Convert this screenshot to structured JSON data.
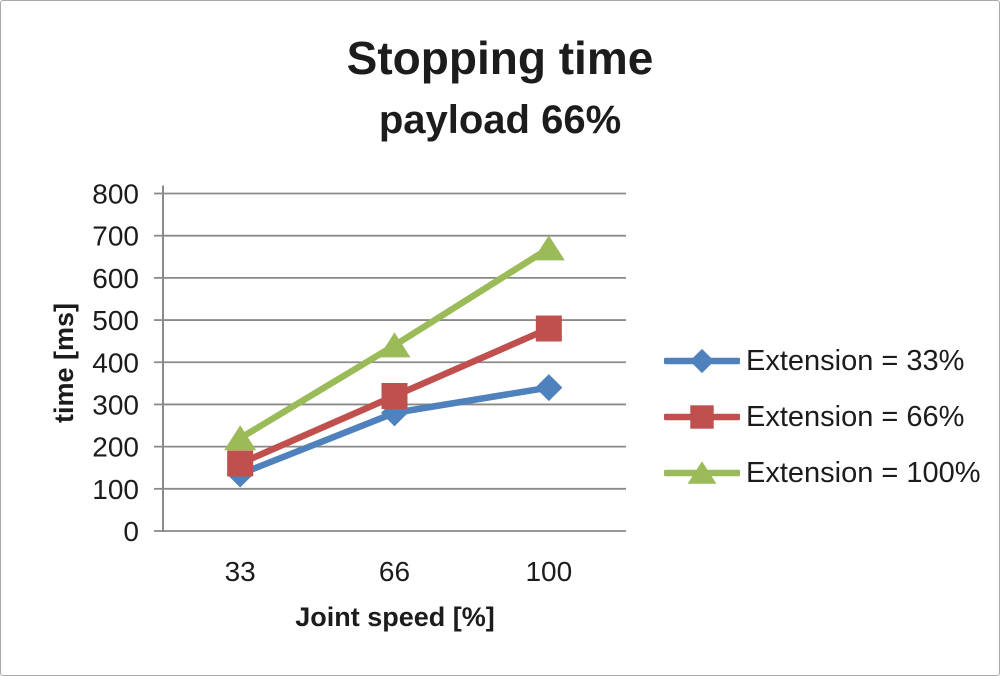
{
  "chart_data": {
    "type": "line",
    "title": "Stopping time",
    "subtitle": "payload 66%",
    "xlabel": "Joint speed [%]",
    "ylabel": "time [ms]",
    "categories": [
      "33",
      "66",
      "100"
    ],
    "ylim": [
      0,
      800
    ],
    "ytick_step": 100,
    "grid": "horizontal-only",
    "legend_position": "right",
    "series": [
      {
        "name": "Extension = 33%",
        "marker": "diamond",
        "color": "#4F81BD",
        "values": [
          135,
          280,
          340
        ]
      },
      {
        "name": "Extension = 66%",
        "marker": "square",
        "color": "#C0504D",
        "values": [
          160,
          320,
          480
        ]
      },
      {
        "name": "Extension = 100%",
        "marker": "triangle",
        "color": "#9BBB59",
        "values": [
          220,
          440,
          670
        ]
      }
    ],
    "colors": {
      "grid": "#8A8A8A",
      "axis": "#8A8A8A",
      "text": "#1C1C1C",
      "background": "#FFFFFF",
      "frame_border": "#A8A8A8"
    }
  }
}
